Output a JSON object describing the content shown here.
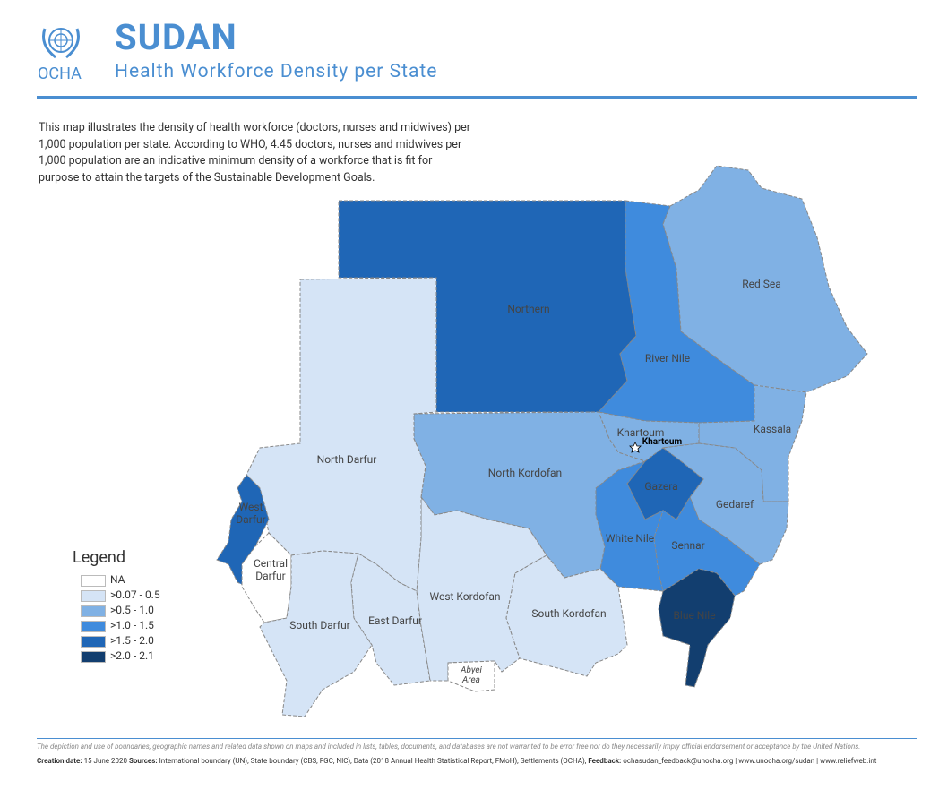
{
  "header": {
    "org": "OCHA",
    "title": "SUDAN",
    "subtitle": "Health Workforce Density per State"
  },
  "description": "This map illustrates the density of health workforce (doctors, nurses and midwives) per 1,000 population per state. According to WHO, 4.45 doctors, nurses and midwives per 1,000 population are an indicative minimum density of a workforce that is fit for purpose to attain the targets of the Sustainable Development Goals.",
  "legend": {
    "title": "Legend",
    "items": [
      {
        "label": "NA",
        "color": "#ffffff"
      },
      {
        "label": ">0.07 - 0.5",
        "color": "#d5e4f6"
      },
      {
        "label": ">0.5 - 1.0",
        "color": "#80b1e4"
      },
      {
        "label": ">1.0 - 1.5",
        "color": "#3f8bdd"
      },
      {
        "label": ">1.5 - 2.0",
        "color": "#1f66b6"
      },
      {
        "label": ">2.0 - 2.1",
        "color": "#123e6f"
      }
    ]
  },
  "states": [
    {
      "name": "Northern",
      "color": "#1f66b6"
    },
    {
      "name": "River Nile",
      "color": "#3f8bdd"
    },
    {
      "name": "Red Sea",
      "color": "#80b1e4"
    },
    {
      "name": "Kassala",
      "color": "#80b1e4"
    },
    {
      "name": "Khartoum",
      "color": "#80b1e4"
    },
    {
      "name": "Gedaref",
      "color": "#80b1e4"
    },
    {
      "name": "Gazera",
      "color": "#1f66b6"
    },
    {
      "name": "Sennar",
      "color": "#3f8bdd"
    },
    {
      "name": "White Nile",
      "color": "#3f8bdd"
    },
    {
      "name": "Blue Nile",
      "color": "#123e6f"
    },
    {
      "name": "North Kordofan",
      "color": "#80b1e4"
    },
    {
      "name": "West Kordofan",
      "color": "#d5e4f6"
    },
    {
      "name": "South Kordofan",
      "color": "#d5e4f6"
    },
    {
      "name": "North Darfur",
      "color": "#d5e4f6"
    },
    {
      "name": "West Darfur",
      "color": "#1f66b6"
    },
    {
      "name": "Central Darfur",
      "color": "#ffffff"
    },
    {
      "name": "South Darfur",
      "color": "#d5e4f6"
    },
    {
      "name": "East Darfur",
      "color": "#d5e4f6"
    },
    {
      "name": "Abyei Area",
      "color": "#ffffff"
    }
  ],
  "capital": "Khartoum",
  "footer": {
    "disclaimer": "The depiction and use of boundaries, geographic names and related data shown on maps and included in lists, tables, documents, and databases are not warranted to be error free nor do they necessarily imply official endorsement or acceptance by the United Nations.",
    "credits": [
      {
        "label": "Creation date:",
        "text": "15 June 2020"
      },
      {
        "label": "Sources:",
        "text": "International boundary (UN), State boundary (CBS, FGC, NIC), Data (2018 Annual Health Statistical Report, FMoH), Settlements (OCHA),"
      },
      {
        "label": "Feedback:",
        "text": "ochasudan_feedback@unocha.org | www.unocha.org/sudan | www.reliefweb.int"
      }
    ]
  }
}
